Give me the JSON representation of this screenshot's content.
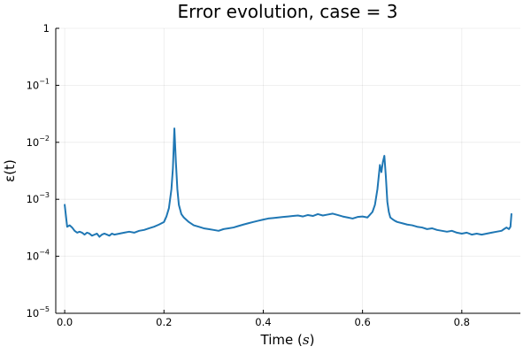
{
  "chart_data": {
    "type": "line",
    "title": "Error evolution, case = 3",
    "xlabel_main": "Time (",
    "xlabel_sym": "s",
    "xlabel_close": ")",
    "ylabel": "ε(t)",
    "xlim": [
      -0.018,
      0.918
    ],
    "ylim_log10": [
      -5,
      0
    ],
    "yscale": "log",
    "grid": true,
    "legend": "none",
    "x_ticks": [
      "0.0",
      "0.2",
      "0.4",
      "0.6",
      "0.8"
    ],
    "x_tick_values": [
      0.0,
      0.2,
      0.4,
      0.6,
      0.8
    ],
    "y_ticks": [
      {
        "exp": -5,
        "base": "10",
        "sup": "−5"
      },
      {
        "exp": -4,
        "base": "10",
        "sup": "−4"
      },
      {
        "exp": -3,
        "base": "10",
        "sup": "−3"
      },
      {
        "exp": -2,
        "base": "10",
        "sup": "−2"
      },
      {
        "exp": -1,
        "base": "10",
        "sup": "−1"
      },
      {
        "exp": 0,
        "base": "1",
        "sup": "0",
        "plain": true
      }
    ],
    "line_color": "#1f77b4",
    "series": [
      {
        "x": [
          0.0,
          0.005,
          0.01,
          0.015,
          0.02,
          0.025,
          0.03,
          0.035,
          0.04,
          0.045,
          0.05,
          0.055,
          0.06,
          0.065,
          0.07,
          0.075,
          0.08,
          0.085,
          0.09,
          0.095,
          0.1,
          0.11,
          0.12,
          0.13,
          0.14,
          0.15,
          0.16,
          0.17,
          0.18,
          0.19,
          0.2,
          0.205,
          0.21,
          0.215,
          0.218,
          0.221,
          0.224,
          0.227,
          0.23,
          0.235,
          0.24,
          0.25,
          0.26,
          0.27,
          0.28,
          0.29,
          0.3,
          0.31,
          0.32,
          0.33,
          0.34,
          0.35,
          0.36,
          0.37,
          0.38,
          0.39,
          0.4,
          0.41,
          0.42,
          0.43,
          0.44,
          0.45,
          0.46,
          0.47,
          0.48,
          0.49,
          0.5,
          0.51,
          0.52,
          0.53,
          0.54,
          0.55,
          0.56,
          0.57,
          0.58,
          0.59,
          0.6,
          0.61,
          0.62,
          0.625,
          0.63,
          0.635,
          0.638,
          0.641,
          0.644,
          0.647,
          0.65,
          0.653,
          0.656,
          0.66,
          0.665,
          0.67,
          0.68,
          0.69,
          0.7,
          0.71,
          0.72,
          0.73,
          0.74,
          0.75,
          0.76,
          0.77,
          0.78,
          0.79,
          0.8,
          0.81,
          0.82,
          0.83,
          0.84,
          0.85,
          0.86,
          0.87,
          0.88,
          0.885,
          0.89,
          0.895,
          0.898,
          0.9
        ],
        "y": [
          0.0008,
          0.00033,
          0.00035,
          0.00032,
          0.00028,
          0.00026,
          0.00027,
          0.00026,
          0.00024,
          0.00026,
          0.00025,
          0.00023,
          0.00024,
          0.00025,
          0.00022,
          0.00024,
          0.00025,
          0.00024,
          0.00023,
          0.00025,
          0.00024,
          0.00025,
          0.00026,
          0.00027,
          0.00026,
          0.00028,
          0.00029,
          0.00031,
          0.00033,
          0.00036,
          0.0004,
          0.0005,
          0.0007,
          0.0015,
          0.0035,
          0.0175,
          0.0045,
          0.0015,
          0.0008,
          0.00055,
          0.00048,
          0.0004,
          0.00035,
          0.00033,
          0.00031,
          0.0003,
          0.00029,
          0.00028,
          0.0003,
          0.00031,
          0.00032,
          0.00034,
          0.00036,
          0.00038,
          0.0004,
          0.00042,
          0.00044,
          0.00046,
          0.00047,
          0.00048,
          0.00049,
          0.0005,
          0.00051,
          0.00052,
          0.0005,
          0.00053,
          0.00051,
          0.00055,
          0.00052,
          0.00054,
          0.00056,
          0.00053,
          0.0005,
          0.00048,
          0.00046,
          0.00049,
          0.0005,
          0.00048,
          0.0006,
          0.0008,
          0.0015,
          0.004,
          0.003,
          0.0045,
          0.0058,
          0.0025,
          0.0009,
          0.0006,
          0.00048,
          0.00045,
          0.00042,
          0.0004,
          0.00038,
          0.00036,
          0.00035,
          0.00033,
          0.00032,
          0.0003,
          0.00031,
          0.00029,
          0.00028,
          0.00027,
          0.00028,
          0.00026,
          0.00025,
          0.00026,
          0.00024,
          0.00025,
          0.00024,
          0.00025,
          0.00026,
          0.00027,
          0.00028,
          0.0003,
          0.00032,
          0.0003,
          0.00033,
          0.00055
        ]
      }
    ]
  }
}
